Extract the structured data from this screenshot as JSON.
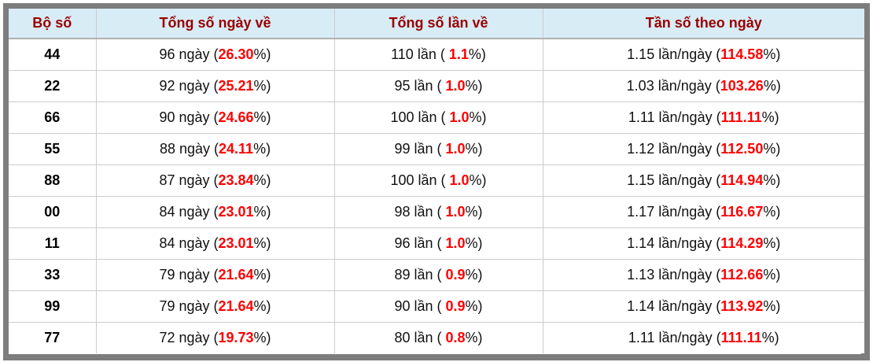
{
  "colors": {
    "frame": "#7d7d7d",
    "header_bg": "#d8ecf6",
    "header_text": "#990000",
    "header_divider": "#b0b0b0",
    "row_divider": "#cccccc",
    "body_text": "#111111",
    "highlight": "#ff0000"
  },
  "table": {
    "columns": [
      {
        "label": "Bộ số"
      },
      {
        "label": "Tổng số ngày về"
      },
      {
        "label": "Tổng số lần về"
      },
      {
        "label": "Tần số theo ngày"
      }
    ],
    "rows": [
      {
        "pair": "44",
        "days_pre": "96 ngày (",
        "days_pct": "26.30",
        "days_post": "%)",
        "times_pre": "110 lần ( ",
        "times_pct": "1.1",
        "times_post": "%)",
        "freq_pre": "1.15 lần/ngày (",
        "freq_pct": "114.58",
        "freq_post": "%)"
      },
      {
        "pair": "22",
        "days_pre": "92 ngày (",
        "days_pct": "25.21",
        "days_post": "%)",
        "times_pre": "95 lần ( ",
        "times_pct": "1.0",
        "times_post": "%)",
        "freq_pre": "1.03 lần/ngày (",
        "freq_pct": "103.26",
        "freq_post": "%)"
      },
      {
        "pair": "66",
        "days_pre": "90 ngày (",
        "days_pct": "24.66",
        "days_post": "%)",
        "times_pre": "100 lần ( ",
        "times_pct": "1.0",
        "times_post": "%)",
        "freq_pre": "1.11 lần/ngày (",
        "freq_pct": "111.11",
        "freq_post": "%)"
      },
      {
        "pair": "55",
        "days_pre": "88 ngày (",
        "days_pct": "24.11",
        "days_post": "%)",
        "times_pre": "99 lần ( ",
        "times_pct": "1.0",
        "times_post": "%)",
        "freq_pre": "1.12 lần/ngày (",
        "freq_pct": "112.50",
        "freq_post": "%)"
      },
      {
        "pair": "88",
        "days_pre": "87 ngày (",
        "days_pct": "23.84",
        "days_post": "%)",
        "times_pre": "100 lần ( ",
        "times_pct": "1.0",
        "times_post": "%)",
        "freq_pre": "1.15 lần/ngày (",
        "freq_pct": "114.94",
        "freq_post": "%)"
      },
      {
        "pair": "00",
        "days_pre": "84 ngày (",
        "days_pct": "23.01",
        "days_post": "%)",
        "times_pre": "98 lần ( ",
        "times_pct": "1.0",
        "times_post": "%)",
        "freq_pre": "1.17 lần/ngày (",
        "freq_pct": "116.67",
        "freq_post": "%)"
      },
      {
        "pair": "11",
        "days_pre": "84 ngày (",
        "days_pct": "23.01",
        "days_post": "%)",
        "times_pre": "96 lần ( ",
        "times_pct": "1.0",
        "times_post": "%)",
        "freq_pre": "1.14 lần/ngày (",
        "freq_pct": "114.29",
        "freq_post": "%)"
      },
      {
        "pair": "33",
        "days_pre": "79 ngày (",
        "days_pct": "21.64",
        "days_post": "%)",
        "times_pre": "89 lần ( ",
        "times_pct": "0.9",
        "times_post": "%)",
        "freq_pre": "1.13 lần/ngày (",
        "freq_pct": "112.66",
        "freq_post": "%)"
      },
      {
        "pair": "99",
        "days_pre": "79 ngày (",
        "days_pct": "21.64",
        "days_post": "%)",
        "times_pre": "90 lần ( ",
        "times_pct": "0.9",
        "times_post": "%)",
        "freq_pre": "1.14 lần/ngày (",
        "freq_pct": "113.92",
        "freq_post": "%)"
      },
      {
        "pair": "77",
        "days_pre": "72 ngày (",
        "days_pct": "19.73",
        "days_post": "%)",
        "times_pre": "80 lần ( ",
        "times_pct": "0.8",
        "times_post": "%)",
        "freq_pre": "1.11 lần/ngày (",
        "freq_pct": "111.11",
        "freq_post": "%)"
      }
    ]
  }
}
